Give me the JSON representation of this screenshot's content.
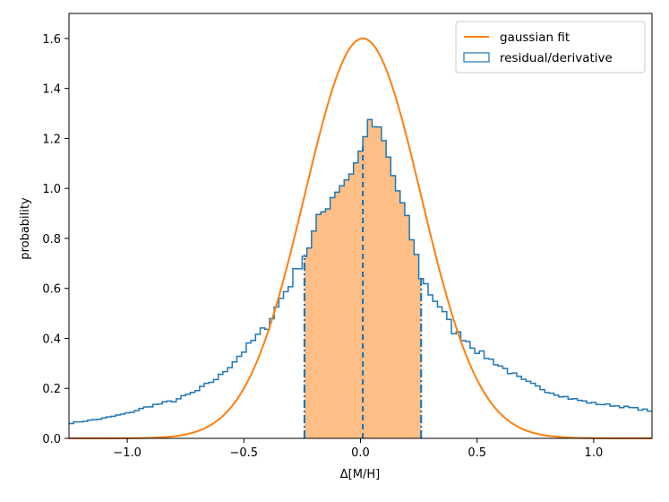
{
  "chart_data": {
    "type": "histogram",
    "xlabel": "Δ[M/H]",
    "ylabel": "probability",
    "xlim": [
      -1.25,
      1.25
    ],
    "ylim": [
      0,
      1.7
    ],
    "xticks": [
      -1.0,
      -0.5,
      0.0,
      0.5,
      1.0
    ],
    "xtick_labels": [
      "−1.0",
      "−0.5",
      "0.0",
      "0.5",
      "1.0"
    ],
    "yticks": [
      0.0,
      0.2,
      0.4,
      0.6,
      0.8,
      1.0,
      1.2,
      1.4,
      1.6
    ],
    "ytick_labels": [
      "0.0",
      "0.2",
      "0.4",
      "0.6",
      "0.8",
      "1.0",
      "1.2",
      "1.4",
      "1.6"
    ],
    "legend": {
      "placement": "top-right",
      "entries": [
        {
          "label": "gaussian fit",
          "style": "line",
          "color": "#ff7f0e"
        },
        {
          "label": "residual/derivative",
          "style": "step",
          "color": "#1f77b4"
        }
      ]
    },
    "series": [
      {
        "name": "gaussian fit",
        "kind": "curve",
        "color": "#ff7f0e",
        "function": "gaussian",
        "peak": 1.6,
        "mean": 0.01,
        "sigma": 0.25
      },
      {
        "name": "residual/derivative",
        "kind": "step-histogram",
        "color": "#1f77b4",
        "bin_start": -1.25,
        "bin_width": 0.02,
        "anchors": [
          [
            -1.25,
            0.06
          ],
          [
            -1.1,
            0.08
          ],
          [
            -1.0,
            0.1
          ],
          [
            -0.9,
            0.13
          ],
          [
            -0.8,
            0.15
          ],
          [
            -0.7,
            0.19
          ],
          [
            -0.6,
            0.25
          ],
          [
            -0.5,
            0.35
          ],
          [
            -0.4,
            0.45
          ],
          [
            -0.34,
            0.56
          ],
          [
            -0.3,
            0.62
          ],
          [
            -0.26,
            0.7
          ],
          [
            -0.22,
            0.77
          ],
          [
            -0.18,
            0.87
          ],
          [
            -0.14,
            0.94
          ],
          [
            -0.1,
            1.0
          ],
          [
            -0.06,
            1.04
          ],
          [
            -0.02,
            1.1
          ],
          [
            0.0,
            1.14
          ],
          [
            0.02,
            1.23
          ],
          [
            0.06,
            1.25
          ],
          [
            0.1,
            1.18
          ],
          [
            0.14,
            1.05
          ],
          [
            0.18,
            0.93
          ],
          [
            0.22,
            0.8
          ],
          [
            0.26,
            0.65
          ],
          [
            0.3,
            0.58
          ],
          [
            0.34,
            0.53
          ],
          [
            0.4,
            0.43
          ],
          [
            0.46,
            0.39
          ],
          [
            0.5,
            0.35
          ],
          [
            0.6,
            0.29
          ],
          [
            0.7,
            0.23
          ],
          [
            0.8,
            0.19
          ],
          [
            0.9,
            0.16
          ],
          [
            1.0,
            0.14
          ],
          [
            1.1,
            0.13
          ],
          [
            1.25,
            0.11
          ]
        ]
      }
    ],
    "shaded_region": {
      "from": -0.24,
      "to": 0.26,
      "color": "#ffbe86"
    },
    "vertical_markers": [
      {
        "x": -0.24,
        "style": "dashdot",
        "color": "#1f77b4"
      },
      {
        "x": 0.01,
        "style": "dashed",
        "color": "#1f77b4"
      },
      {
        "x": 0.26,
        "style": "dashdot",
        "color": "#1f77b4"
      }
    ]
  }
}
